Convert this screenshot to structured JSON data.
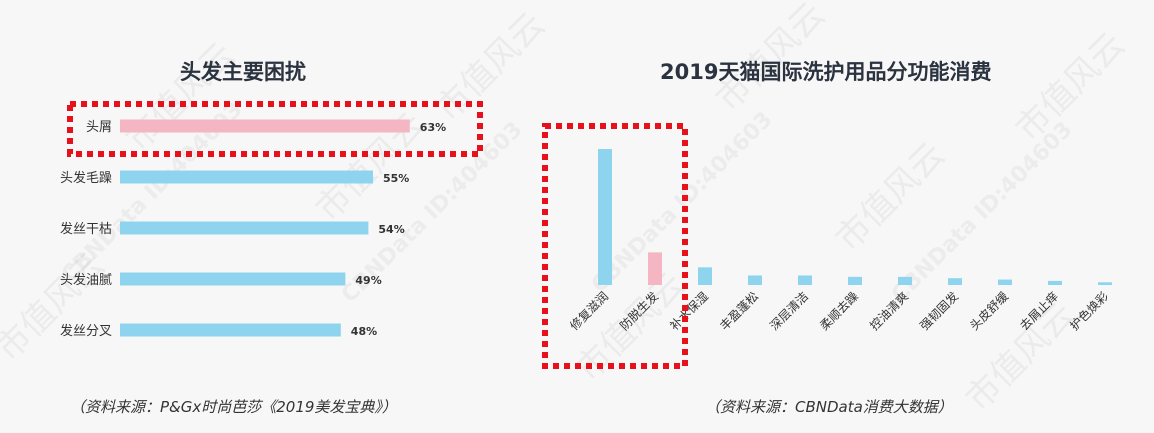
{
  "left": {
    "title": "头发主要困扰",
    "source": "（资料来源：P&Gx时尚芭莎《2019美发宝典》）"
  },
  "right": {
    "title": "2019天猫国际洗护用品分功能消费",
    "source": "（资料来源：CBNData消费大数据）"
  },
  "watermark": {
    "brand": "市值风云",
    "id": "CBNData ID:404603"
  },
  "colors": {
    "blue": "#8ed4ee",
    "pink": "#f4b6c2",
    "highlight": "#e8111b"
  },
  "chart_data": [
    {
      "type": "bar",
      "orientation": "horizontal",
      "title": "头发主要困扰",
      "categories": [
        "头屑",
        "头发毛躁",
        "发丝干枯",
        "头发油腻",
        "发丝分叉"
      ],
      "values": [
        63,
        55,
        54,
        49,
        48
      ],
      "value_labels": [
        "63%",
        "55%",
        "54%",
        "49%",
        "48%"
      ],
      "highlight_index": 0,
      "xlim": [
        0,
        100
      ]
    },
    {
      "type": "bar",
      "orientation": "vertical",
      "title": "2019天猫国际洗护用品分功能消费",
      "categories": [
        "修复滋润",
        "防脱生发",
        "补水保湿",
        "丰盈蓬松",
        "深层清洁",
        "柔顺去躁",
        "控油清爽",
        "强韧固发",
        "头皮舒缓",
        "去屑止痒",
        "护色焕彩"
      ],
      "values": [
        100,
        24,
        13,
        7,
        7,
        6,
        6,
        5,
        4,
        3,
        2
      ],
      "highlight_index": 1,
      "axis_labels": "none"
    }
  ]
}
